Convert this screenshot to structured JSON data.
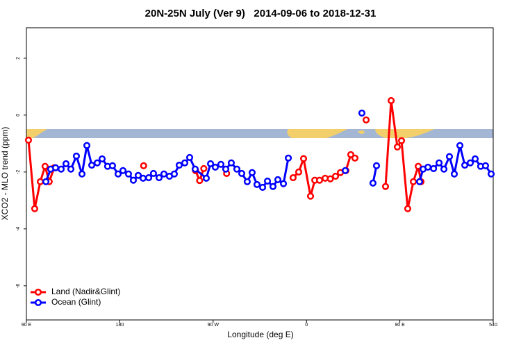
{
  "chart_data": {
    "type": "line",
    "title": "20N-25N July (Ver 9)   2014-09-06 to 2018-12-31",
    "x_label": "Longitude (deg E)",
    "y_label": "XCO2 - MLO trend (ppm)",
    "xlim": [
      90,
      540
    ],
    "xticks": [
      {
        "value": 90,
        "label": "90 E"
      },
      180,
      {
        "value": 270,
        "label": "90 W"
      },
      {
        "value": 360,
        "label": "0"
      },
      {
        "value": 450,
        "label": "90 E"
      },
      540
    ],
    "ylim": [
      -7.2,
      3.07
    ],
    "yticks": [
      2,
      0,
      -2,
      -4,
      -6
    ],
    "legend": "bottom-left",
    "series": [
      {
        "name": "Land (Nadir&Glint)",
        "color": "#ff0000",
        "x": [
          92,
          98,
          103.4,
          108,
          112,
          116.8,
          null,
          203,
          null,
          253,
          257,
          261,
          null,
          283,
          null,
          347.1,
          352.5,
          357.2,
          363.9,
          368,
          372.6,
          378,
          383,
          388,
          392.7,
          398,
          402.7,
          406.7,
          null,
          417.5,
          null,
          436.2,
          441.6,
          447.6,
          451.6,
          457.6,
          463,
          467.7,
          470.4
        ],
        "values": [
          -0.88,
          -3.29,
          -2.34,
          -1.8,
          -2.34,
          -1.85,
          null,
          -1.78,
          null,
          -1.95,
          -2.3,
          -1.88,
          null,
          -2.05,
          null,
          -2.2,
          -2.0,
          -1.53,
          -2.85,
          -2.29,
          -2.29,
          -2.22,
          -2.24,
          -2.15,
          -2.02,
          -1.95,
          -1.39,
          -1.51,
          null,
          -0.17,
          null,
          -2.51,
          0.51,
          -1.12,
          -0.9,
          -3.29,
          -2.34,
          -1.8,
          -2.34
        ]
      },
      {
        "name": "Ocean (Glint)",
        "color": "#0000ff",
        "x": [
          108.8,
          113.4,
          118.1,
          123.5,
          128.2,
          132.9,
          138.2,
          143.6,
          148.3,
          153,
          158.3,
          163,
          168.3,
          173,
          178.4,
          183.1,
          188.4,
          193.1,
          197.8,
          202.5,
          207.9,
          212.5,
          217.9,
          222.6,
          227.9,
          232.6,
          237.3,
          242.7,
          247.4,
          252.7,
          263.4,
          267.5,
          272.1,
          277.5,
          282.2,
          287.5,
          292.9,
          297.6,
          302.9,
          307.6,
          312.3,
          317.7,
          322.4,
          327.7,
          332.4,
          337.8,
          342.5,
          null,
          397.4,
          null,
          413.4,
          null,
          424.1,
          427.5,
          null,
          469,
          472.4,
          477.1,
          482.5,
          487.8,
          492.5,
          497.8,
          502.5,
          507.9,
          512.6,
          517.9,
          522.6,
          527.9,
          532.6,
          538
        ],
        "values": [
          -2.34,
          -1.9,
          -1.85,
          -1.9,
          -1.71,
          -1.9,
          -1.44,
          -2.07,
          -1.07,
          -1.76,
          -1.68,
          -1.54,
          -1.8,
          -1.78,
          -2.07,
          -1.95,
          -2.07,
          -2.29,
          -2.12,
          -2.22,
          -2.2,
          -2.05,
          -2.2,
          -2.07,
          -2.15,
          -2.07,
          -1.76,
          -1.68,
          -1.49,
          -1.9,
          -2.22,
          -1.71,
          -1.83,
          -1.73,
          -1.9,
          -1.68,
          -1.9,
          -2.05,
          -2.34,
          -2.02,
          -2.44,
          -2.54,
          -2.32,
          -2.51,
          -2.27,
          -2.41,
          -1.51,
          null,
          -1.95,
          null,
          0.07,
          null,
          -2.39,
          -1.78,
          null,
          -2.34,
          -1.9,
          -1.83,
          -1.88,
          -1.68,
          -1.9,
          -1.46,
          -2.07,
          -1.07,
          -1.76,
          -1.68,
          -1.54,
          -1.8,
          -1.78,
          -2.07
        ]
      }
    ]
  }
}
